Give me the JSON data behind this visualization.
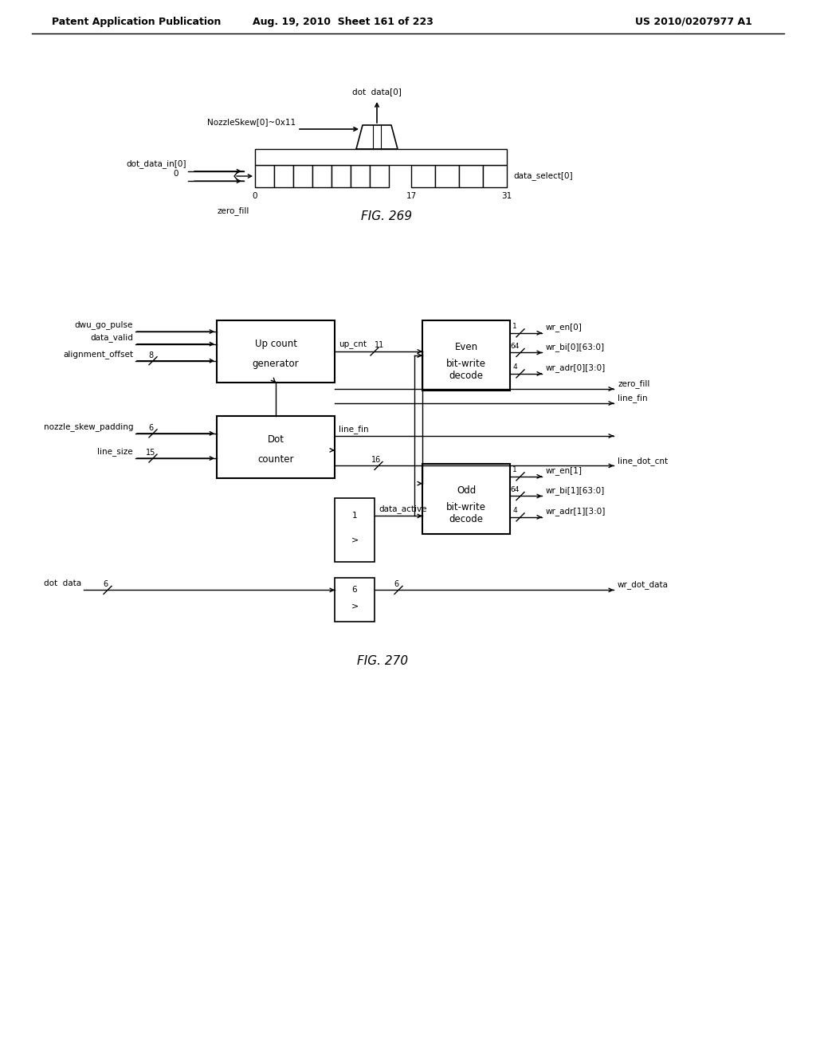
{
  "header_left": "Patent Application Publication",
  "header_mid": "Aug. 19, 2010  Sheet 161 of 223",
  "header_right": "US 2010/0207977 A1",
  "fig269_label": "FIG. 269",
  "fig270_label": "FIG. 270",
  "bg_color": "#ffffff",
  "line_color": "#000000",
  "text_color": "#000000",
  "gray_color": "#555555"
}
